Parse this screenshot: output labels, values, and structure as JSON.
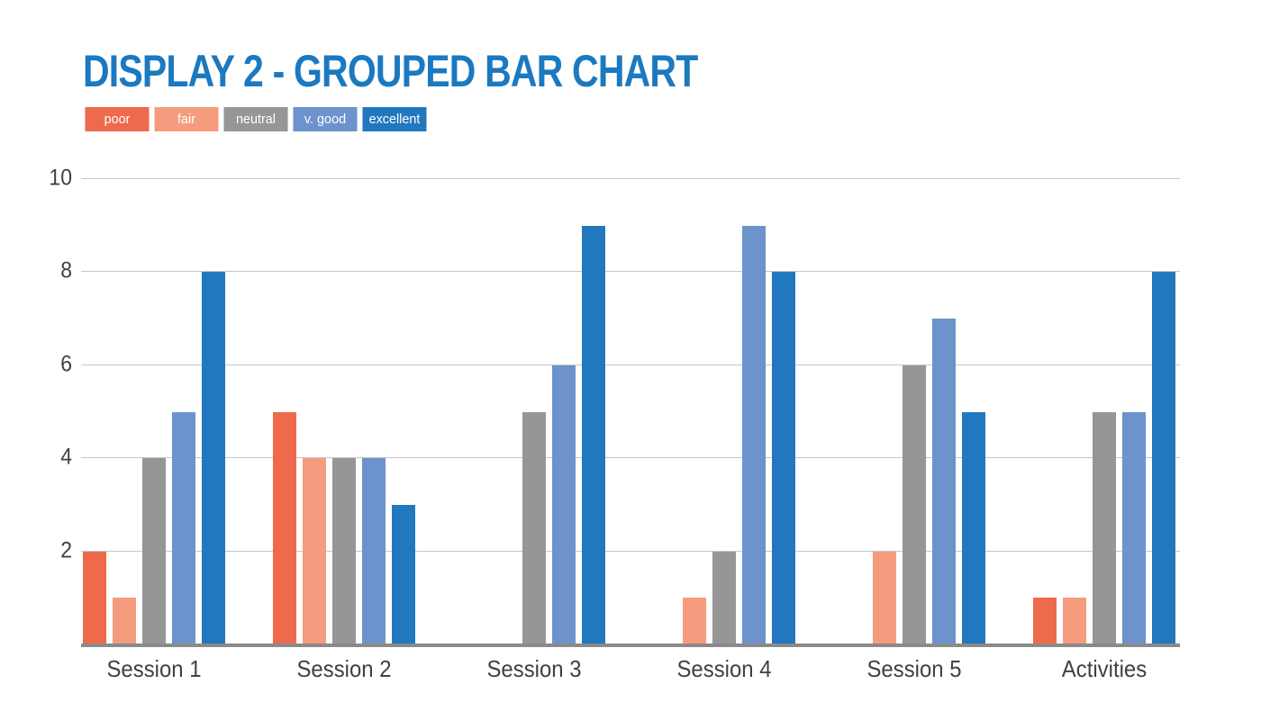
{
  "title": "DISPLAY 2 - GROUPED BAR CHART",
  "colors": {
    "title": "#1B79C0",
    "axis_text": "#414141",
    "gridline": "#C6C6C6",
    "baseline": "#8A8A8A",
    "background": "#FFFFFF"
  },
  "legend": [
    {
      "label": "poor",
      "color": "#EE6A4C"
    },
    {
      "label": "fair",
      "color": "#F59C7E"
    },
    {
      "label": "neutral",
      "color": "#969696"
    },
    {
      "label": "v. good",
      "color": "#6C93CC"
    },
    {
      "label": "excellent",
      "color": "#2278BE"
    }
  ],
  "chart_data": {
    "type": "bar",
    "title": "DISPLAY 2 - GROUPED BAR CHART",
    "categories": [
      "Session 1",
      "Session 2",
      "Session 3",
      "Session 4",
      "Session 5",
      "Activities"
    ],
    "series": [
      {
        "name": "poor",
        "color": "#EE6A4C",
        "values": [
          2,
          5,
          0,
          0,
          0,
          1
        ]
      },
      {
        "name": "fair",
        "color": "#F59C7E",
        "values": [
          1,
          4,
          0,
          1,
          2,
          1
        ]
      },
      {
        "name": "neutral",
        "color": "#969696",
        "values": [
          4,
          4,
          5,
          2,
          6,
          5
        ]
      },
      {
        "name": "v. good",
        "color": "#6C93CC",
        "values": [
          5,
          4,
          6,
          9,
          7,
          5
        ]
      },
      {
        "name": "excellent",
        "color": "#2278BE",
        "values": [
          8,
          3,
          9,
          8,
          5,
          8
        ]
      }
    ],
    "ylim": [
      0,
      10
    ],
    "yticks": [
      2,
      4,
      6,
      8,
      10
    ],
    "grid": true,
    "legend_position": "top-left",
    "xlabel": "",
    "ylabel": ""
  }
}
